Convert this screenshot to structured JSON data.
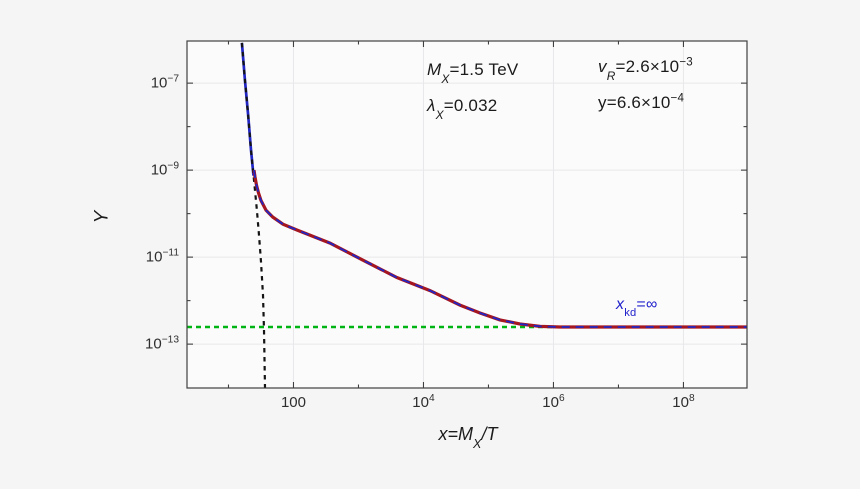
{
  "colors": {
    "background": "#f5f5f6",
    "plot_background": "#fbfbfc",
    "frame": "#404040",
    "grid": "#e8e8ea",
    "tick_text": "#2e2e2e",
    "annotation_text": "#1b1b1b",
    "equilibrium_curve": "#141414",
    "relic_curve": "#a41620",
    "kd_curve": "#2126c4",
    "asymptote_line": "#00b414",
    "kd_label": "#2222cc"
  },
  "chart_data": {
    "type": "line",
    "title": "",
    "ylabel": "Y",
    "xlabel_parts": [
      {
        "t": "x=M",
        "i": true
      },
      {
        "t": "X",
        "i": true,
        "sub": true
      },
      {
        "t": "/T",
        "i": true
      }
    ],
    "x_scale": "log",
    "y_scale": "log",
    "xlim": [
      2.3,
      950000000
    ],
    "ylim": [
      9.8e-15,
      9.3e-07
    ],
    "grid": true,
    "x_ticks": [
      {
        "value": 100,
        "parts": [
          {
            "t": "100"
          }
        ]
      },
      {
        "value": 10000,
        "parts": [
          {
            "t": "10"
          },
          {
            "t": "4",
            "sup": true
          }
        ]
      },
      {
        "value": 1000000,
        "parts": [
          {
            "t": "10"
          },
          {
            "t": "6",
            "sup": true
          }
        ]
      },
      {
        "value": 100000000,
        "parts": [
          {
            "t": "10"
          },
          {
            "t": "8",
            "sup": true
          }
        ]
      }
    ],
    "y_ticks": [
      {
        "value": 1e-07,
        "parts": [
          {
            "t": "10"
          },
          {
            "t": "−7",
            "sup": true
          }
        ]
      },
      {
        "value": 1e-09,
        "parts": [
          {
            "t": "10"
          },
          {
            "t": "−9",
            "sup": true
          }
        ]
      },
      {
        "value": 1e-11,
        "parts": [
          {
            "t": "10"
          },
          {
            "t": "−11",
            "sup": true
          }
        ]
      },
      {
        "value": 1e-13,
        "parts": [
          {
            "t": "10"
          },
          {
            "t": "−13",
            "sup": true
          }
        ]
      }
    ],
    "x_minor_ticks": [
      10,
      1000,
      100000,
      10000000
    ],
    "y_minor_ticks": [
      1e-08,
      1e-10,
      1e-12
    ],
    "series": [
      {
        "name": "asymptote-green-dashed",
        "color": "#00b414",
        "width": 2.6,
        "dash": "5 4",
        "points": [
          [
            2.3,
            2.47e-13
          ],
          [
            1000000,
            2.47e-13
          ]
        ]
      },
      {
        "name": "kd-equilibrium-blue-solid",
        "color": "#2126c4",
        "width": 2.7,
        "points": [
          [
            16.1,
            8.4e-07
          ],
          [
            17.9,
            1.2e-07
          ],
          [
            20,
            1.9e-08
          ],
          [
            22.2,
            2.9e-09
          ],
          [
            24.3,
            7.5e-10
          ]
        ]
      },
      {
        "name": "equilibrium-black-dashed",
        "color": "#141414",
        "width": 2.2,
        "dash": "4.5 4.5",
        "points": [
          [
            16.1,
            8.4e-07
          ],
          [
            17.9,
            1.2e-07
          ],
          [
            20,
            1.9e-08
          ],
          [
            22.2,
            2.9e-09
          ],
          [
            24.7,
            5.9e-10
          ],
          [
            27.4,
            1.2e-10
          ],
          [
            29.5,
            3.2e-11
          ],
          [
            31.6,
            7.8e-12
          ],
          [
            34,
            1.35e-12
          ],
          [
            35.2,
            2.1e-13
          ],
          [
            36.5,
            9.8e-15
          ]
        ]
      },
      {
        "name": "relic-abundance-red-solid",
        "color": "#a41620",
        "width": 3.2,
        "points": [
          [
            24.7,
            1e-09
          ],
          [
            25.6,
            7e-10
          ],
          [
            27,
            4.5e-10
          ],
          [
            29,
            3e-10
          ],
          [
            31.6,
            2e-10
          ],
          [
            37.8,
            1.2e-10
          ],
          [
            48,
            8.3e-11
          ],
          [
            69,
            5.7e-11
          ],
          [
            113,
            4.2e-11
          ],
          [
            365,
            2.1e-11
          ],
          [
            1175,
            8.5e-12
          ],
          [
            3900,
            3.4e-12
          ],
          [
            12600,
            1.7e-12
          ],
          [
            36500,
            7.9e-13
          ],
          [
            74000,
            5.2e-13
          ],
          [
            150000,
            3.6e-13
          ],
          [
            306000,
            2.9e-13
          ],
          [
            620000,
            2.55e-13
          ],
          [
            1260000,
            2.47e-13
          ],
          [
            950000000,
            2.47e-13
          ]
        ]
      },
      {
        "name": "kd-overlay-blue-dashed",
        "color": "#2126c4",
        "width": 1.8,
        "dash": "8 6",
        "points": [
          [
            24.7,
            1e-09
          ],
          [
            25.6,
            7e-10
          ],
          [
            27,
            4.5e-10
          ],
          [
            29,
            3e-10
          ],
          [
            31.6,
            2e-10
          ],
          [
            37.8,
            1.2e-10
          ],
          [
            48,
            8.3e-11
          ],
          [
            69,
            5.7e-11
          ],
          [
            113,
            4.2e-11
          ],
          [
            365,
            2.1e-11
          ],
          [
            1175,
            8.5e-12
          ],
          [
            3900,
            3.4e-12
          ],
          [
            12600,
            1.7e-12
          ],
          [
            36500,
            7.9e-13
          ],
          [
            74000,
            5.2e-13
          ],
          [
            150000,
            3.6e-13
          ],
          [
            306000,
            2.9e-13
          ],
          [
            620000,
            2.55e-13
          ],
          [
            1260000,
            2.47e-13
          ],
          [
            950000000,
            2.47e-13
          ]
        ]
      }
    ],
    "annotations": [
      {
        "id": "mass-param",
        "x": 427,
        "y": 60,
        "color": "#1b1b1b",
        "parts": [
          {
            "t": "M",
            "i": true
          },
          {
            "t": "X",
            "i": true,
            "sub": true
          },
          {
            "t": "=1.5 TeV"
          }
        ]
      },
      {
        "id": "lambda-param",
        "x": 427,
        "y": 96,
        "color": "#1b1b1b",
        "parts": [
          {
            "t": "λ",
            "i": true
          },
          {
            "t": "X",
            "i": true,
            "sub": true
          },
          {
            "t": "=0.032"
          }
        ]
      },
      {
        "id": "vr-param",
        "x": 598,
        "y": 57,
        "color": "#1b1b1b",
        "parts": [
          {
            "t": "v",
            "i": true
          },
          {
            "t": "R",
            "i": true,
            "sub": true
          },
          {
            "t": "=2.6×10"
          },
          {
            "t": "−3",
            "sup": true
          }
        ]
      },
      {
        "id": "y-param",
        "x": 598,
        "y": 93,
        "color": "#1b1b1b",
        "parts": [
          {
            "t": "y=6.6×10"
          },
          {
            "t": "−4",
            "sup": true
          }
        ]
      },
      {
        "id": "xkd-label",
        "x": 616,
        "y": 296,
        "color": "#2222cc",
        "size": 16,
        "parts": [
          {
            "t": "x",
            "i": true
          },
          {
            "t": "kd",
            "sub": true
          },
          {
            "t": "=∞"
          }
        ]
      }
    ]
  }
}
